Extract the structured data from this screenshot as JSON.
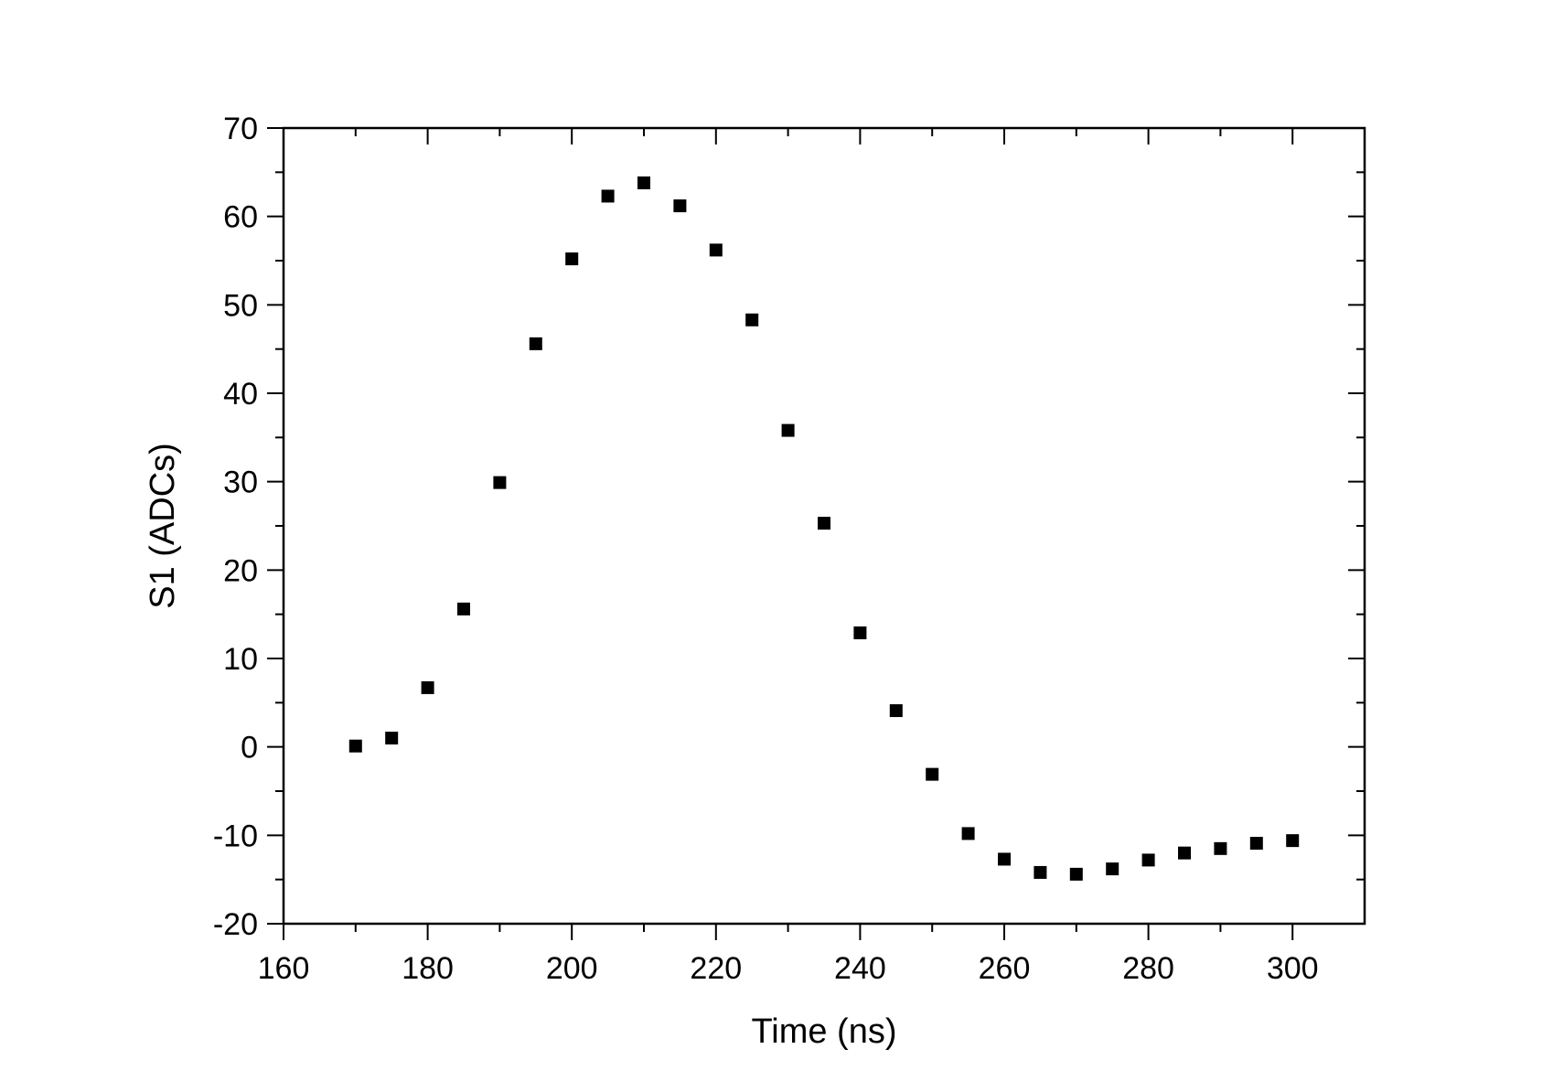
{
  "chart_data": {
    "type": "scatter",
    "title": "",
    "xlabel": "Time (ns)",
    "ylabel": "S1 (ADCs)",
    "xlim": [
      160,
      310
    ],
    "ylim": [
      -20,
      70
    ],
    "x_ticks": [
      160,
      180,
      200,
      220,
      240,
      260,
      280,
      300
    ],
    "y_ticks": [
      -20,
      -10,
      0,
      10,
      20,
      30,
      40,
      50,
      60,
      70
    ],
    "grid": false,
    "legend": "none",
    "marker": "square",
    "marker_color": "#000000",
    "series": [
      {
        "x": [
          170,
          175,
          180,
          185,
          190,
          195,
          200,
          205,
          210,
          215,
          220,
          225,
          230,
          235,
          240,
          245,
          250,
          255,
          260,
          265,
          270,
          275,
          280,
          285,
          290,
          295,
          300
        ],
        "y": [
          0.1,
          1.0,
          6.7,
          15.6,
          29.9,
          45.6,
          55.2,
          62.3,
          63.8,
          61.2,
          56.2,
          48.3,
          35.8,
          25.3,
          12.9,
          4.1,
          -3.1,
          -9.8,
          -12.7,
          -14.2,
          -14.4,
          -13.8,
          -12.8,
          -12.0,
          -11.5,
          -10.9,
          -10.6
        ]
      }
    ]
  }
}
